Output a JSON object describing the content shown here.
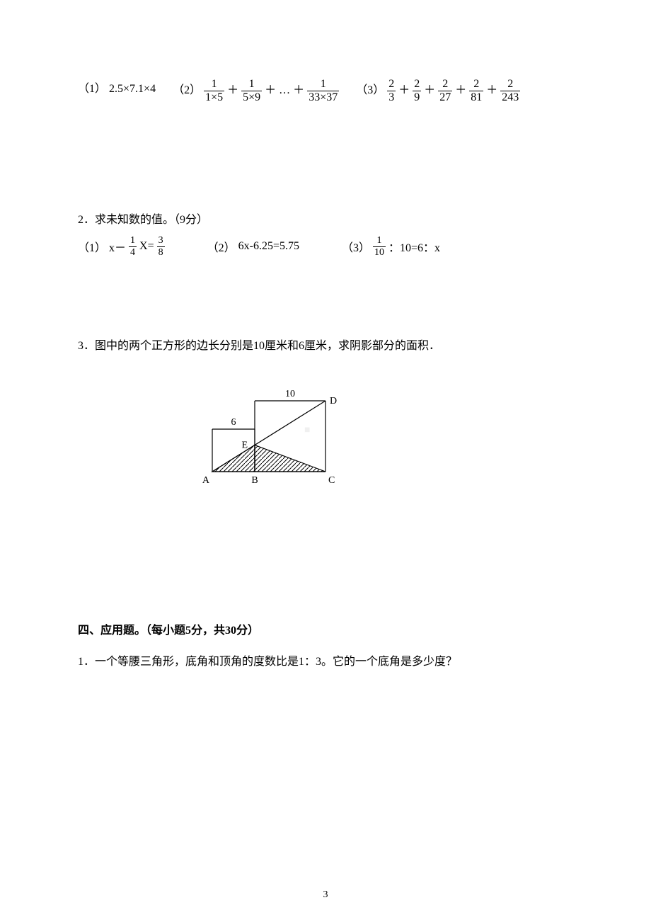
{
  "problems": {
    "p1": {
      "sub1": {
        "label": "（1）",
        "expr": "2.5×7.1×4"
      },
      "sub2": {
        "label": "（2）",
        "t1_num": "1",
        "t1_den": "1×5",
        "t2_num": "1",
        "t2_den": "5×9",
        "ellipsis": "…",
        "t3_num": "1",
        "t3_den": "33×37"
      },
      "sub3": {
        "label": "（3）",
        "t1_num": "2",
        "t1_den": "3",
        "t2_num": "2",
        "t2_den": "9",
        "t3_num": "2",
        "t3_den": "27",
        "t4_num": "2",
        "t4_den": "81",
        "t5_num": "2",
        "t5_den": "243"
      }
    },
    "p2": {
      "title": "2．求未知数的值。（9分）",
      "sub1": {
        "label": "（1）",
        "lead": "x－",
        "f_num": "1",
        "f_den": "4",
        "mid": "X=",
        "r_num": "3",
        "r_den": "8"
      },
      "sub2": {
        "label": "（2）",
        "expr": "6x-6.25=5.75"
      },
      "sub3": {
        "label": "（3）",
        "f_num": "1",
        "f_den": "10",
        "tail": "：10=6：x"
      }
    },
    "p3": {
      "title": "3．图中的两个正方形的边长分别是10厘米和6厘米，求阴影部分的面积．",
      "diagram": {
        "big_side": 10,
        "small_side": 6,
        "label_big": "10",
        "label_small": "6",
        "pt_A": "A",
        "pt_B": "B",
        "pt_C": "C",
        "pt_D": "D",
        "pt_E": "E",
        "stroke": "#000000",
        "hatch_spacing": 6
      }
    },
    "section4": {
      "heading": "四、应用题。（每小题5分，共30分）",
      "q1": "1．一个等腰三角形，底角和顶角的度数比是1：3。它的一个底角是多少度？"
    }
  },
  "page_number": "3",
  "watermark": "■"
}
